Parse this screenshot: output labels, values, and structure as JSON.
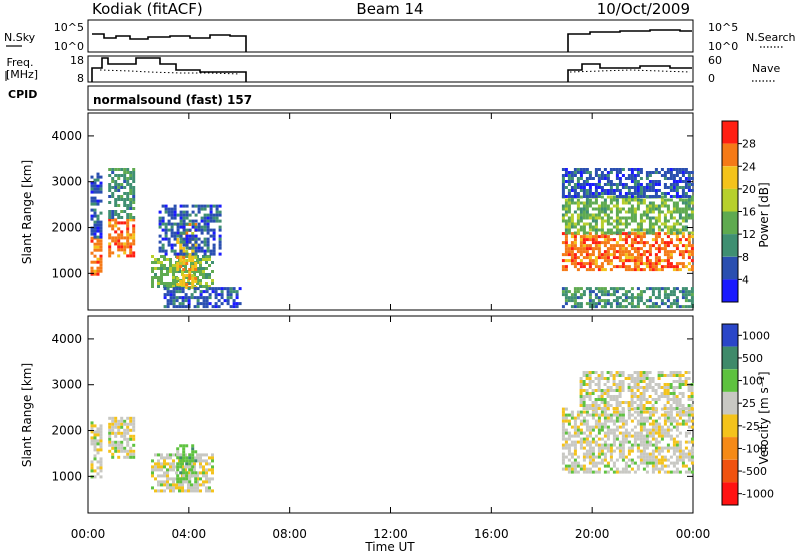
{
  "header": {
    "station": "Kodiak (fitACF)",
    "beam": "Beam 14",
    "date": "10/Oct/2009"
  },
  "top_panels": {
    "nsky_label": "N.Sky",
    "nsky_ticks": [
      "10^5",
      "10^0"
    ],
    "nsearch_label": "N.Search",
    "nsearch_ticks": [
      "10^5",
      "10^0"
    ],
    "freq_label_line1": "Freq.",
    "freq_label_line2": "[MHz]",
    "freq_ticks": [
      "18",
      "8"
    ],
    "nave_label": "Nave",
    "nave_ticks": [
      "60",
      "0"
    ],
    "cpid_label": "CPID",
    "mode_text": "normalsound (fast) 157"
  },
  "chart_data": [
    {
      "type": "heatmap",
      "name": "power",
      "ylabel": "Slant Range [km]",
      "yticks": [
        "1000",
        "2000",
        "3000",
        "4000"
      ],
      "ylim": [
        200,
        4500
      ],
      "xlim": [
        0,
        24
      ],
      "colorbar_label": "Power [dB]",
      "colorbar_ticks": [
        "4",
        "8",
        "12",
        "16",
        "20",
        "24",
        "28"
      ],
      "colors": [
        "#1a1aff",
        "#2a4fb0",
        "#3f8f72",
        "#5faa50",
        "#b7cf2c",
        "#f4c31b",
        "#f57a17",
        "#ff1f12"
      ],
      "blocks": [
        {
          "x0": 0.1,
          "x1": 0.5,
          "y0": 1000,
          "y1": 1800,
          "level": 6
        },
        {
          "x0": 0.1,
          "x1": 0.5,
          "y0": 1800,
          "y1": 3200,
          "level": 1
        },
        {
          "x0": 0.8,
          "x1": 1.8,
          "y0": 1400,
          "y1": 2200,
          "level": 6
        },
        {
          "x0": 0.8,
          "x1": 1.8,
          "y0": 2200,
          "y1": 3300,
          "level": 2
        },
        {
          "x0": 2.5,
          "x1": 4.9,
          "y0": 700,
          "y1": 1400,
          "level": 3
        },
        {
          "x0": 3.5,
          "x1": 4.3,
          "y0": 700,
          "y1": 2100,
          "level": 5
        },
        {
          "x0": 2.8,
          "x1": 5.2,
          "y0": 1400,
          "y1": 2500,
          "level": 1
        },
        {
          "x0": 3.0,
          "x1": 6.0,
          "y0": 250,
          "y1": 700,
          "level": 1
        },
        {
          "x0": 18.8,
          "x1": 24.0,
          "y0": 1100,
          "y1": 1900,
          "level": 6
        },
        {
          "x0": 18.8,
          "x1": 24.0,
          "y0": 1900,
          "y1": 2700,
          "level": 3
        },
        {
          "x0": 18.8,
          "x1": 24.0,
          "y0": 2700,
          "y1": 3300,
          "level": 1
        },
        {
          "x0": 18.8,
          "x1": 24.0,
          "y0": 250,
          "y1": 700,
          "level": 2
        }
      ]
    },
    {
      "type": "heatmap",
      "name": "velocity",
      "ylabel": "Slant Range [km]",
      "yticks": [
        "1000",
        "2000",
        "3000",
        "4000"
      ],
      "ylim": [
        200,
        4500
      ],
      "xlim": [
        0,
        24
      ],
      "xticks": [
        "00:00",
        "04:00",
        "08:00",
        "12:00",
        "16:00",
        "20:00",
        "00:00"
      ],
      "xlabel": "Time UT",
      "colorbar_label": "Velocity [m s⁻¹]",
      "colorbar_ticks": [
        "1000",
        "500",
        "100",
        "25",
        "-25",
        "-100",
        "-500",
        "-1000"
      ],
      "colors": [
        "#2a46c8",
        "#3f8a6a",
        "#5ec23f",
        "#c8c8c3",
        "#f4c31b",
        "#f58a17",
        "#f0520f",
        "#ff1212"
      ],
      "blocks": [
        {
          "x0": 0.1,
          "x1": 0.5,
          "y0": 1000,
          "y1": 2200,
          "level": 3
        },
        {
          "x0": 0.8,
          "x1": 1.8,
          "y0": 1400,
          "y1": 2300,
          "level": 3
        },
        {
          "x0": 2.5,
          "x1": 4.9,
          "y0": 700,
          "y1": 1500,
          "level": 3
        },
        {
          "x0": 3.5,
          "x1": 4.3,
          "y0": 900,
          "y1": 1700,
          "level": 2
        },
        {
          "x0": 18.8,
          "x1": 24.0,
          "y0": 1100,
          "y1": 2500,
          "level": 3
        },
        {
          "x0": 19.5,
          "x1": 24.0,
          "y0": 2500,
          "y1": 3300,
          "level": 3
        }
      ]
    }
  ]
}
